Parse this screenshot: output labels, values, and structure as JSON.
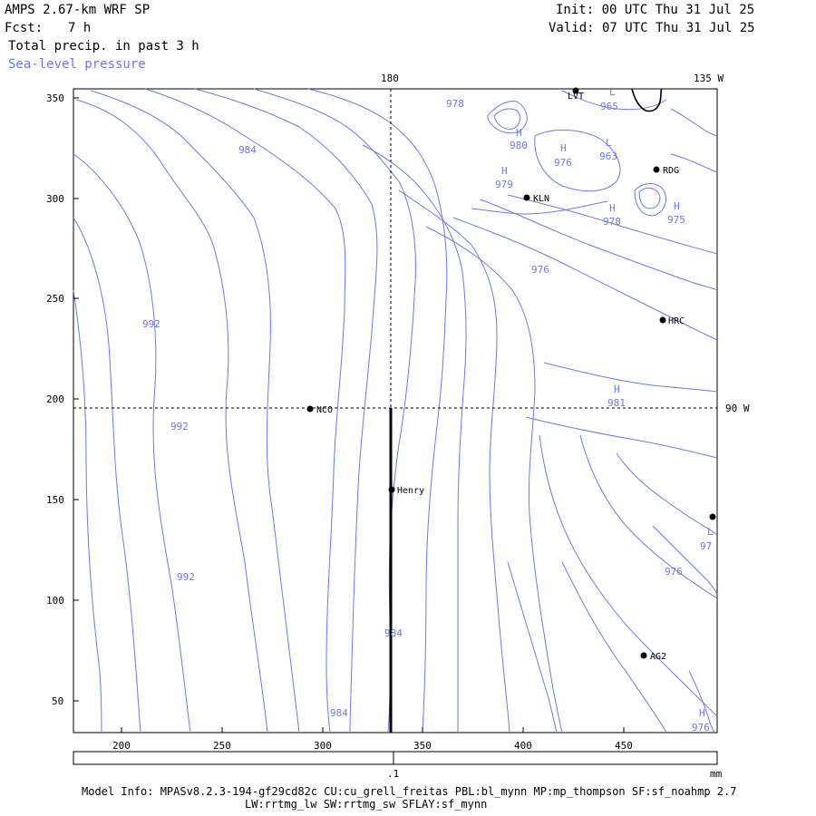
{
  "header": {
    "model": "AMPS 2.67-km WRF SP",
    "fcst_label": "Fcst:",
    "fcst_value": "7 h",
    "field1": "Total precip. in past 3 h",
    "field2": "Sea-level pressure",
    "init": "Init: 00 UTC Thu 31 Jul 25",
    "valid": "Valid: 07 UTC Thu 31 Jul 25"
  },
  "map": {
    "y_ticks": [
      "350",
      "300",
      "250",
      "200",
      "150",
      "100",
      "50"
    ],
    "x_ticks": [
      "200",
      "250",
      "300",
      "350",
      "400",
      "450"
    ],
    "lon_labels": {
      "top_180": "180",
      "top_135w": "135 W",
      "right_90w": "90 W"
    },
    "stations": [
      {
        "name": "LVT"
      },
      {
        "name": "RDG"
      },
      {
        "name": "KLN"
      },
      {
        "name": "HRC"
      },
      {
        "name": "NCO"
      },
      {
        "name": "Henry"
      },
      {
        "name": "AG2"
      }
    ],
    "contour_labels": [
      "978",
      "965",
      "980",
      "976",
      "963",
      "979",
      "978",
      "975",
      "984",
      "976",
      "992",
      "981",
      "992",
      "992",
      "984",
      "984",
      "976",
      "976",
      "97"
    ],
    "hl_markers": [
      "L",
      "H",
      "H",
      "L",
      "H",
      "H",
      "H",
      "H",
      "L",
      "H"
    ],
    "colors": {
      "contour": "#6f78e6",
      "axis": "#000000"
    }
  },
  "colorbar": {
    "tick_label": ".1",
    "unit": "mm"
  },
  "footer": {
    "line1": "Model Info: MPASv8.2.3-194-gf29cd82c CU:cu_grell_freitas PBL:bl_mynn MP:mp_thompson SF:sf_noahmp 2.7",
    "line2": "LW:rrtmg_lw SW:rrtmg_sw SFLAY:sf_mynn"
  }
}
